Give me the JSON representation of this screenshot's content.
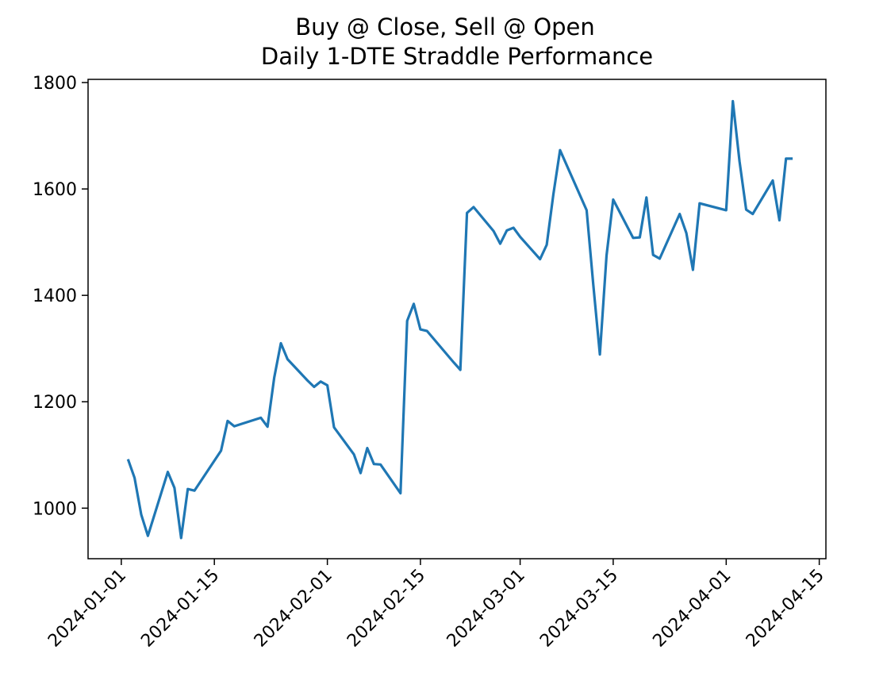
{
  "chart_data": {
    "type": "line",
    "title": "Buy @ Close, Sell @ Open",
    "subtitle": "Daily 1-DTE Straddle Performance",
    "xlabel": "",
    "ylabel": "",
    "x_axis_type": "date",
    "xlim": [
      "2023-12-27",
      "2024-04-16"
    ],
    "ylim": [
      905,
      1806
    ],
    "grid": false,
    "legend": "none",
    "line_color": "#1f77b4",
    "x_ticks": [
      "2024-01-01",
      "2024-01-15",
      "2024-02-01",
      "2024-02-15",
      "2024-03-01",
      "2024-03-15",
      "2024-04-01",
      "2024-04-15"
    ],
    "y_ticks": [
      1000,
      1200,
      1400,
      1600,
      1800
    ],
    "series": [
      {
        "name": "",
        "x": [
          "2024-01-02",
          "2024-01-03",
          "2024-01-04",
          "2024-01-05",
          "2024-01-08",
          "2024-01-09",
          "2024-01-10",
          "2024-01-11",
          "2024-01-12",
          "2024-01-16",
          "2024-01-17",
          "2024-01-18",
          "2024-01-19",
          "2024-01-22",
          "2024-01-23",
          "2024-01-24",
          "2024-01-25",
          "2024-01-26",
          "2024-01-29",
          "2024-01-30",
          "2024-01-31",
          "2024-02-01",
          "2024-02-02",
          "2024-02-05",
          "2024-02-06",
          "2024-02-07",
          "2024-02-08",
          "2024-02-09",
          "2024-02-12",
          "2024-02-13",
          "2024-02-14",
          "2024-02-15",
          "2024-02-16",
          "2024-02-20",
          "2024-02-21",
          "2024-02-22",
          "2024-02-23",
          "2024-02-26",
          "2024-02-27",
          "2024-02-28",
          "2024-02-29",
          "2024-03-01",
          "2024-03-04",
          "2024-03-05",
          "2024-03-06",
          "2024-03-07",
          "2024-03-11",
          "2024-03-12",
          "2024-03-13",
          "2024-03-14",
          "2024-03-15",
          "2024-03-18",
          "2024-03-19",
          "2024-03-20",
          "2024-03-21",
          "2024-03-22",
          "2024-03-25",
          "2024-03-26",
          "2024-03-27",
          "2024-03-28",
          "2024-04-01",
          "2024-04-02",
          "2024-04-03",
          "2024-04-04",
          "2024-04-05",
          "2024-04-08",
          "2024-04-09",
          "2024-04-10",
          "2024-04-11"
        ],
        "y": [
          1092,
          1057,
          988,
          948,
          1068,
          1038,
          944,
          1036,
          1033,
          1108,
          1164,
          1154,
          1158,
          1170,
          1153,
          1245,
          1310,
          1280,
          1240,
          1228,
          1238,
          1231,
          1152,
          1101,
          1066,
          1113,
          1083,
          1082,
          1028,
          1352,
          1384,
          1336,
          1333,
          1274,
          1260,
          1555,
          1566,
          1521,
          1497,
          1522,
          1527,
          1510,
          1468,
          1495,
          1590,
          1673,
          1560,
          1420,
          1289,
          1475,
          1580,
          1508,
          1509,
          1584,
          1476,
          1469,
          1553,
          1517,
          1448,
          1573,
          1560,
          1765,
          1652,
          1561,
          1553,
          1616,
          1541,
          1657,
          1657
        ]
      }
    ]
  }
}
